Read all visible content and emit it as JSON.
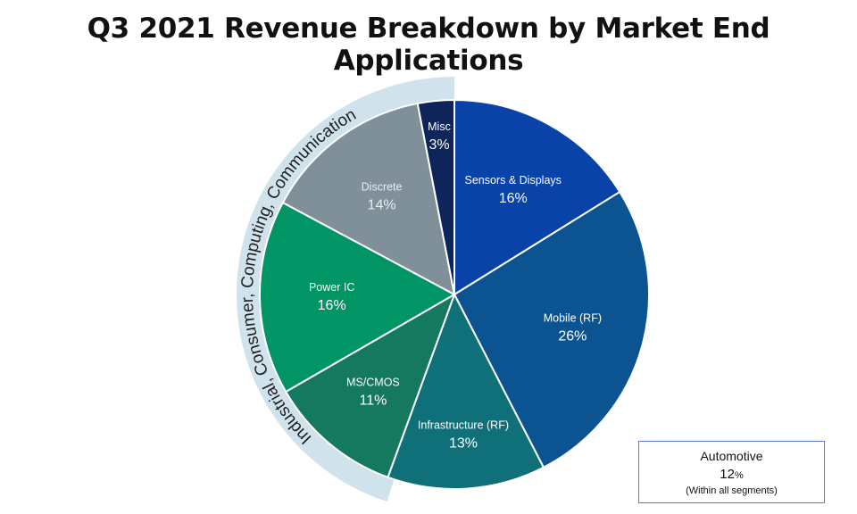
{
  "title": "Q3 2021 Revenue Breakdown by Market End Applications",
  "chart_data": {
    "type": "pie",
    "title": "Q3 2021 Revenue Breakdown by Market End Applications",
    "unit": "%",
    "slices": [
      {
        "label": "Sensors & Displays",
        "value": 16,
        "display": "16%",
        "color": "#0a43a8"
      },
      {
        "label": "Mobile (RF)",
        "value": 26,
        "display": "26%",
        "color": "#0b5491"
      },
      {
        "label": "Infrastructure (RF)",
        "value": 13,
        "display": "13%",
        "color": "#10707a"
      },
      {
        "label": "MS/CMOS",
        "value": 11,
        "display": "11%",
        "color": "#14795e"
      },
      {
        "label": "Power IC",
        "value": 16,
        "display": "16%",
        "color": "#019465"
      },
      {
        "label": "Discrete",
        "value": 14,
        "display": "14%",
        "color": "#7f909b"
      },
      {
        "label": "Misc",
        "value": 3,
        "display": "3%",
        "color": "#0d2559"
      }
    ],
    "start_angle_deg": 0,
    "direction": "clockwise",
    "group_arc": {
      "label": "Industrial, Consumer, Computing, Communication",
      "covers": [
        "MS/CMOS",
        "Power IC",
        "Discrete",
        "Misc"
      ],
      "color": "#d0e2ec"
    }
  },
  "annotation": {
    "title": "Automotive",
    "value": "12",
    "unit": "%",
    "note": "(Within all segments)"
  }
}
